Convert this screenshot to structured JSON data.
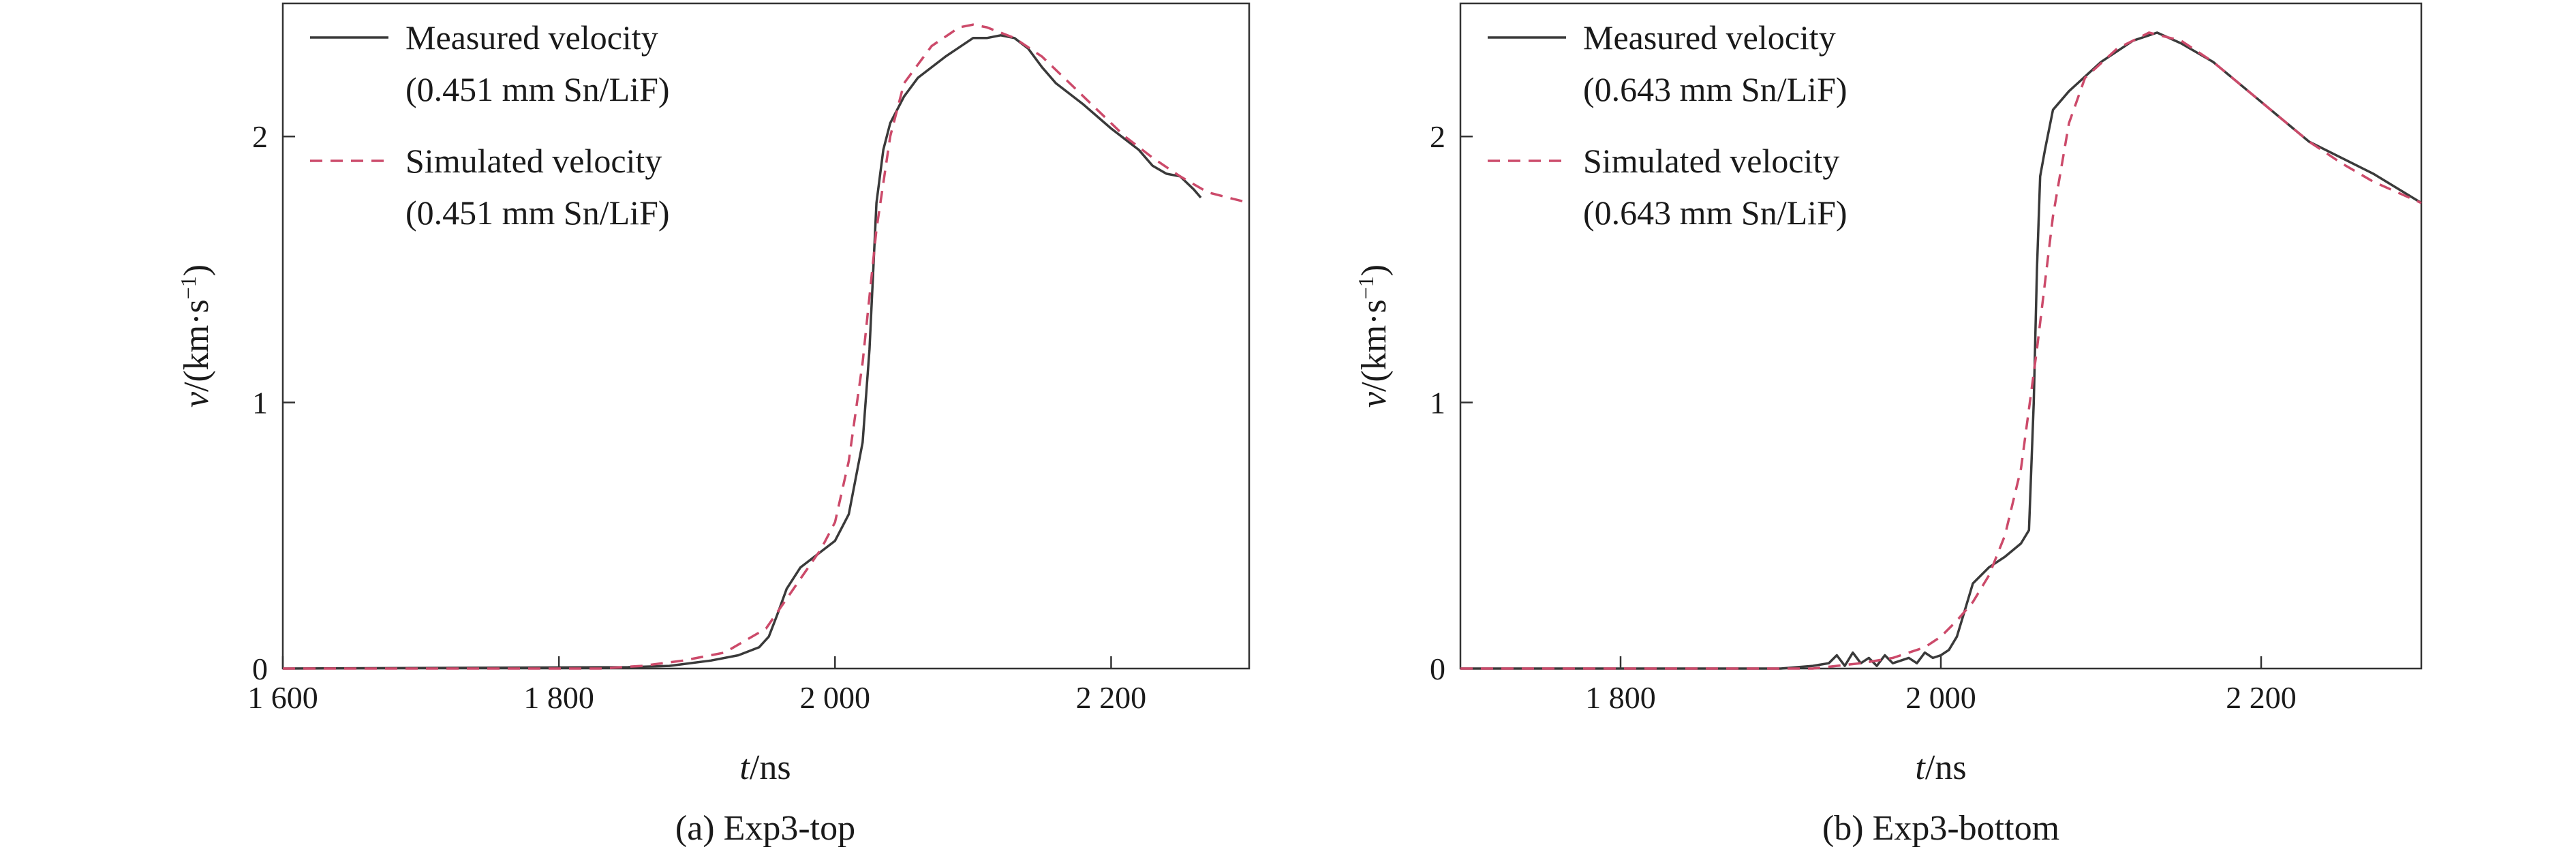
{
  "chart_data": [
    {
      "type": "line",
      "caption": "(a) Exp3-top",
      "xlabel_italic": "t",
      "xlabel_unit": "/ns",
      "ylabel_italic": "v",
      "ylabel_unit": "/(km·s",
      "ylabel_exp": "−1",
      "ylabel_close": ")",
      "xlim": [
        1600,
        2300
      ],
      "ylim": [
        0,
        2.5
      ],
      "xticks": [
        1600,
        1800,
        2000,
        2200
      ],
      "xtick_labels": [
        "1 600",
        "1 800",
        "2 000",
        "2 200"
      ],
      "yticks": [
        0,
        1,
        2
      ],
      "ytick_labels": [
        "0",
        "1",
        "2"
      ],
      "legend": [
        {
          "line1": "Measured velocity",
          "line2": "(0.451 mm Sn/LiF)"
        },
        {
          "line1": "Simulated velocity",
          "line2": "(0.451 mm Sn/LiF)"
        }
      ],
      "series": [
        {
          "name": "Measured velocity (0.451 mm Sn/LiF)",
          "x": [
            1600,
            1850,
            1880,
            1910,
            1930,
            1945,
            1952,
            1958,
            1965,
            1975,
            1990,
            2000,
            2010,
            2020,
            2025,
            2030,
            2035,
            2040,
            2050,
            2060,
            2080,
            2100,
            2110,
            2120,
            2130,
            2140,
            2150,
            2160,
            2180,
            2200,
            2220,
            2230,
            2240,
            2250,
            2260,
            2265
          ],
          "y": [
            0,
            0.005,
            0.01,
            0.03,
            0.05,
            0.08,
            0.12,
            0.2,
            0.3,
            0.38,
            0.44,
            0.48,
            0.58,
            0.85,
            1.2,
            1.75,
            1.95,
            2.05,
            2.15,
            2.22,
            2.3,
            2.37,
            2.37,
            2.38,
            2.37,
            2.33,
            2.26,
            2.2,
            2.12,
            2.03,
            1.95,
            1.89,
            1.86,
            1.85,
            1.8,
            1.77
          ]
        },
        {
          "name": "Simulated velocity (0.451 mm Sn/LiF)",
          "x": [
            1600,
            1830,
            1860,
            1890,
            1920,
            1950,
            1970,
            1990,
            2000,
            2010,
            2020,
            2030,
            2040,
            2050,
            2070,
            2090,
            2100,
            2110,
            2130,
            2150,
            2170,
            2190,
            2210,
            2230,
            2250,
            2270,
            2300
          ],
          "y": [
            0,
            0,
            0.01,
            0.03,
            0.06,
            0.15,
            0.3,
            0.45,
            0.55,
            0.78,
            1.15,
            1.65,
            2.0,
            2.2,
            2.34,
            2.41,
            2.42,
            2.41,
            2.37,
            2.3,
            2.2,
            2.1,
            2.0,
            1.92,
            1.85,
            1.79,
            1.75
          ]
        }
      ]
    },
    {
      "type": "line",
      "caption": "(b) Exp3-bottom",
      "xlabel_italic": "t",
      "xlabel_unit": "/ns",
      "ylabel_italic": "v",
      "ylabel_unit": "/(km·s",
      "ylabel_exp": "−1",
      "ylabel_close": ")",
      "xlim": [
        1700,
        2300
      ],
      "ylim": [
        0,
        2.5
      ],
      "xticks": [
        1800,
        2000,
        2200
      ],
      "xtick_labels": [
        "1 800",
        "2 000",
        "2 200"
      ],
      "yticks": [
        0,
        1,
        2
      ],
      "ytick_labels": [
        "0",
        "1",
        "2"
      ],
      "legend": [
        {
          "line1": "Measured velocity",
          "line2": "(0.643 mm Sn/LiF)"
        },
        {
          "line1": "Simulated velocity",
          "line2": "(0.643 mm Sn/LiF)"
        }
      ],
      "series": [
        {
          "name": "Measured velocity (0.643 mm Sn/LiF)",
          "x": [
            1700,
            1900,
            1920,
            1930,
            1935,
            1940,
            1945,
            1950,
            1955,
            1960,
            1965,
            1970,
            1975,
            1980,
            1985,
            1990,
            1995,
            2000,
            2005,
            2010,
            2015,
            2020,
            2030,
            2040,
            2050,
            2055,
            2058,
            2060,
            2062,
            2065,
            2070,
            2080,
            2100,
            2120,
            2135,
            2150,
            2170,
            2190,
            2210,
            2230,
            2250,
            2270,
            2300
          ],
          "y": [
            0,
            0,
            0.01,
            0.02,
            0.05,
            0.01,
            0.06,
            0.02,
            0.04,
            0.01,
            0.05,
            0.02,
            0.03,
            0.04,
            0.02,
            0.06,
            0.04,
            0.05,
            0.07,
            0.12,
            0.22,
            0.32,
            0.38,
            0.42,
            0.47,
            0.52,
            1.0,
            1.5,
            1.85,
            1.95,
            2.1,
            2.17,
            2.28,
            2.36,
            2.39,
            2.35,
            2.28,
            2.18,
            2.08,
            1.98,
            1.92,
            1.86,
            1.75
          ]
        },
        {
          "name": "Simulated velocity (0.643 mm Sn/LiF)",
          "x": [
            1700,
            1920,
            1950,
            1970,
            1990,
            2000,
            2010,
            2020,
            2030,
            2040,
            2050,
            2060,
            2070,
            2080,
            2090,
            2110,
            2130,
            2150,
            2170,
            2190,
            2210,
            2230,
            2250,
            2270,
            2300
          ],
          "y": [
            0,
            0,
            0.02,
            0.04,
            0.08,
            0.12,
            0.18,
            0.25,
            0.35,
            0.5,
            0.75,
            1.2,
            1.7,
            2.05,
            2.22,
            2.33,
            2.39,
            2.36,
            2.28,
            2.18,
            2.08,
            1.98,
            1.9,
            1.83,
            1.75
          ]
        }
      ]
    }
  ]
}
